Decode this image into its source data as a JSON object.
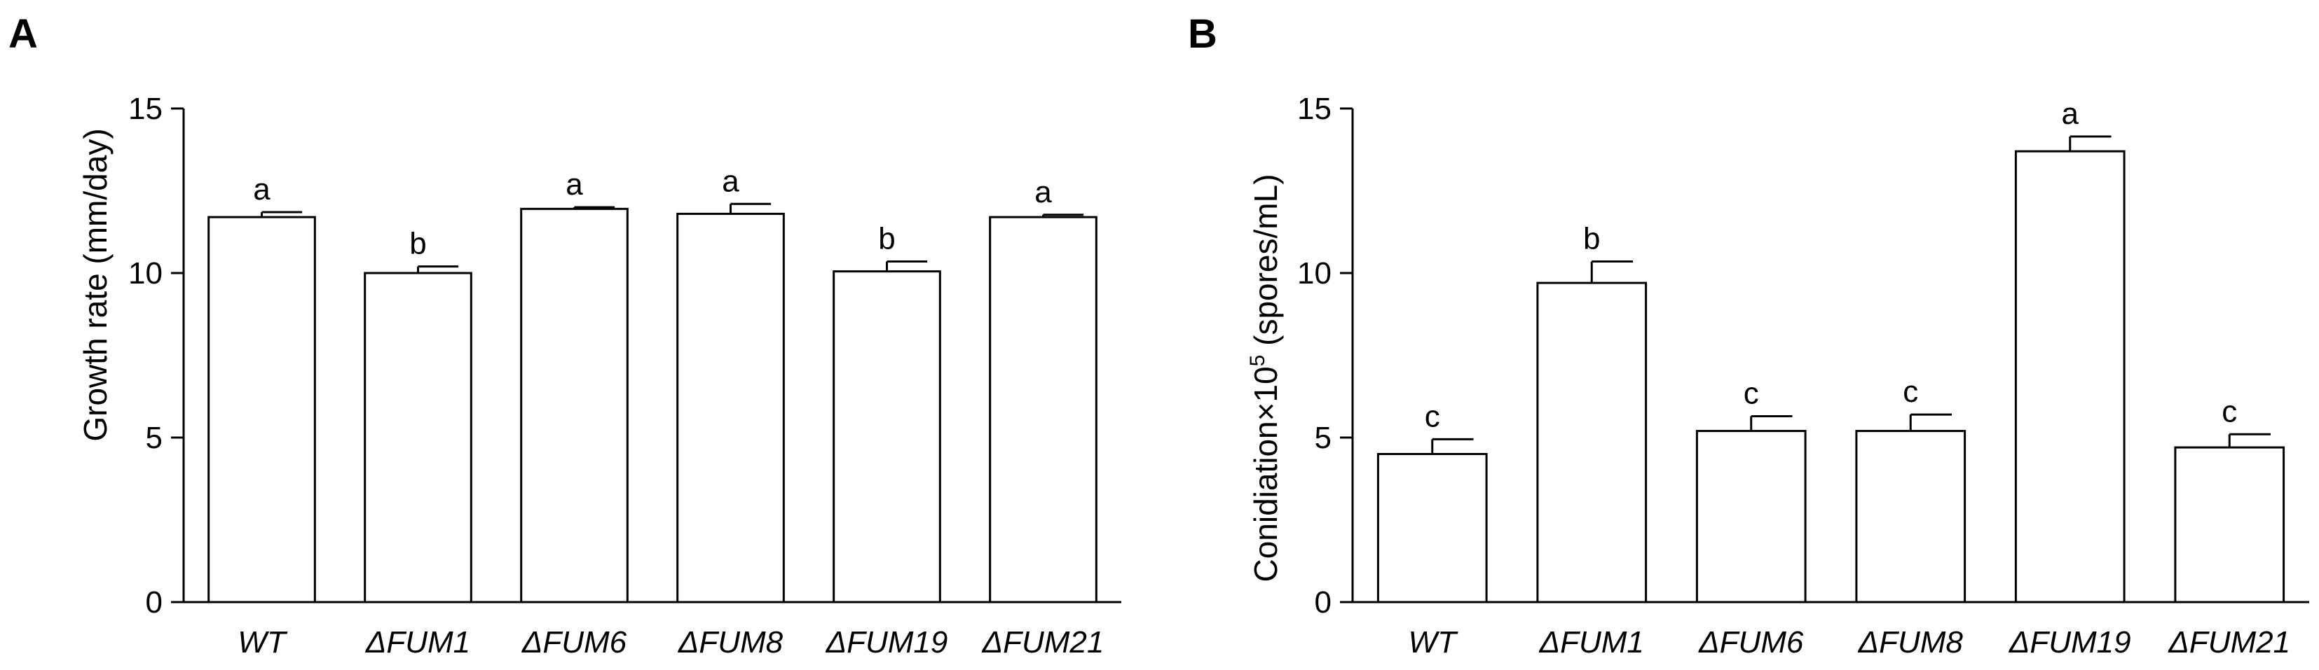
{
  "chart_data": [
    {
      "type": "bar",
      "panel_label": "A",
      "title": "",
      "xlabel": "",
      "ylabel": "Growth rate (mm/day)",
      "ylim": [
        0,
        15
      ],
      "yticks": [
        "0",
        "5",
        "10",
        "15"
      ],
      "categories": [
        "WT",
        "ΔFUM1",
        "ΔFUM6",
        "ΔFUM8",
        "ΔFUM19",
        "ΔFUM21"
      ],
      "values": [
        11.7,
        10.0,
        11.95,
        11.8,
        10.05,
        11.7
      ],
      "errors": [
        0.15,
        0.2,
        0.05,
        0.3,
        0.3,
        0.07
      ],
      "significance": [
        "a",
        "b",
        "a",
        "a",
        "b",
        "a"
      ],
      "grid": false,
      "legend": "none"
    },
    {
      "type": "bar",
      "panel_label": "B",
      "title": "",
      "xlabel": "",
      "ylabel_pre": "Conidiation×10",
      "ylabel_sup": "5",
      "ylabel_post": " (spores/mL)",
      "ylim": [
        0,
        15
      ],
      "yticks": [
        "0",
        "5",
        "10",
        "15"
      ],
      "categories": [
        "WT",
        "ΔFUM1",
        "ΔFUM6",
        "ΔFUM8",
        "ΔFUM19",
        "ΔFUM21"
      ],
      "values": [
        4.5,
        9.7,
        5.2,
        5.2,
        13.7,
        4.7
      ],
      "errors": [
        0.45,
        0.65,
        0.45,
        0.5,
        0.45,
        0.4
      ],
      "significance": [
        "c",
        "b",
        "c",
        "c",
        "a",
        "c"
      ],
      "grid": false,
      "legend": "none"
    }
  ]
}
